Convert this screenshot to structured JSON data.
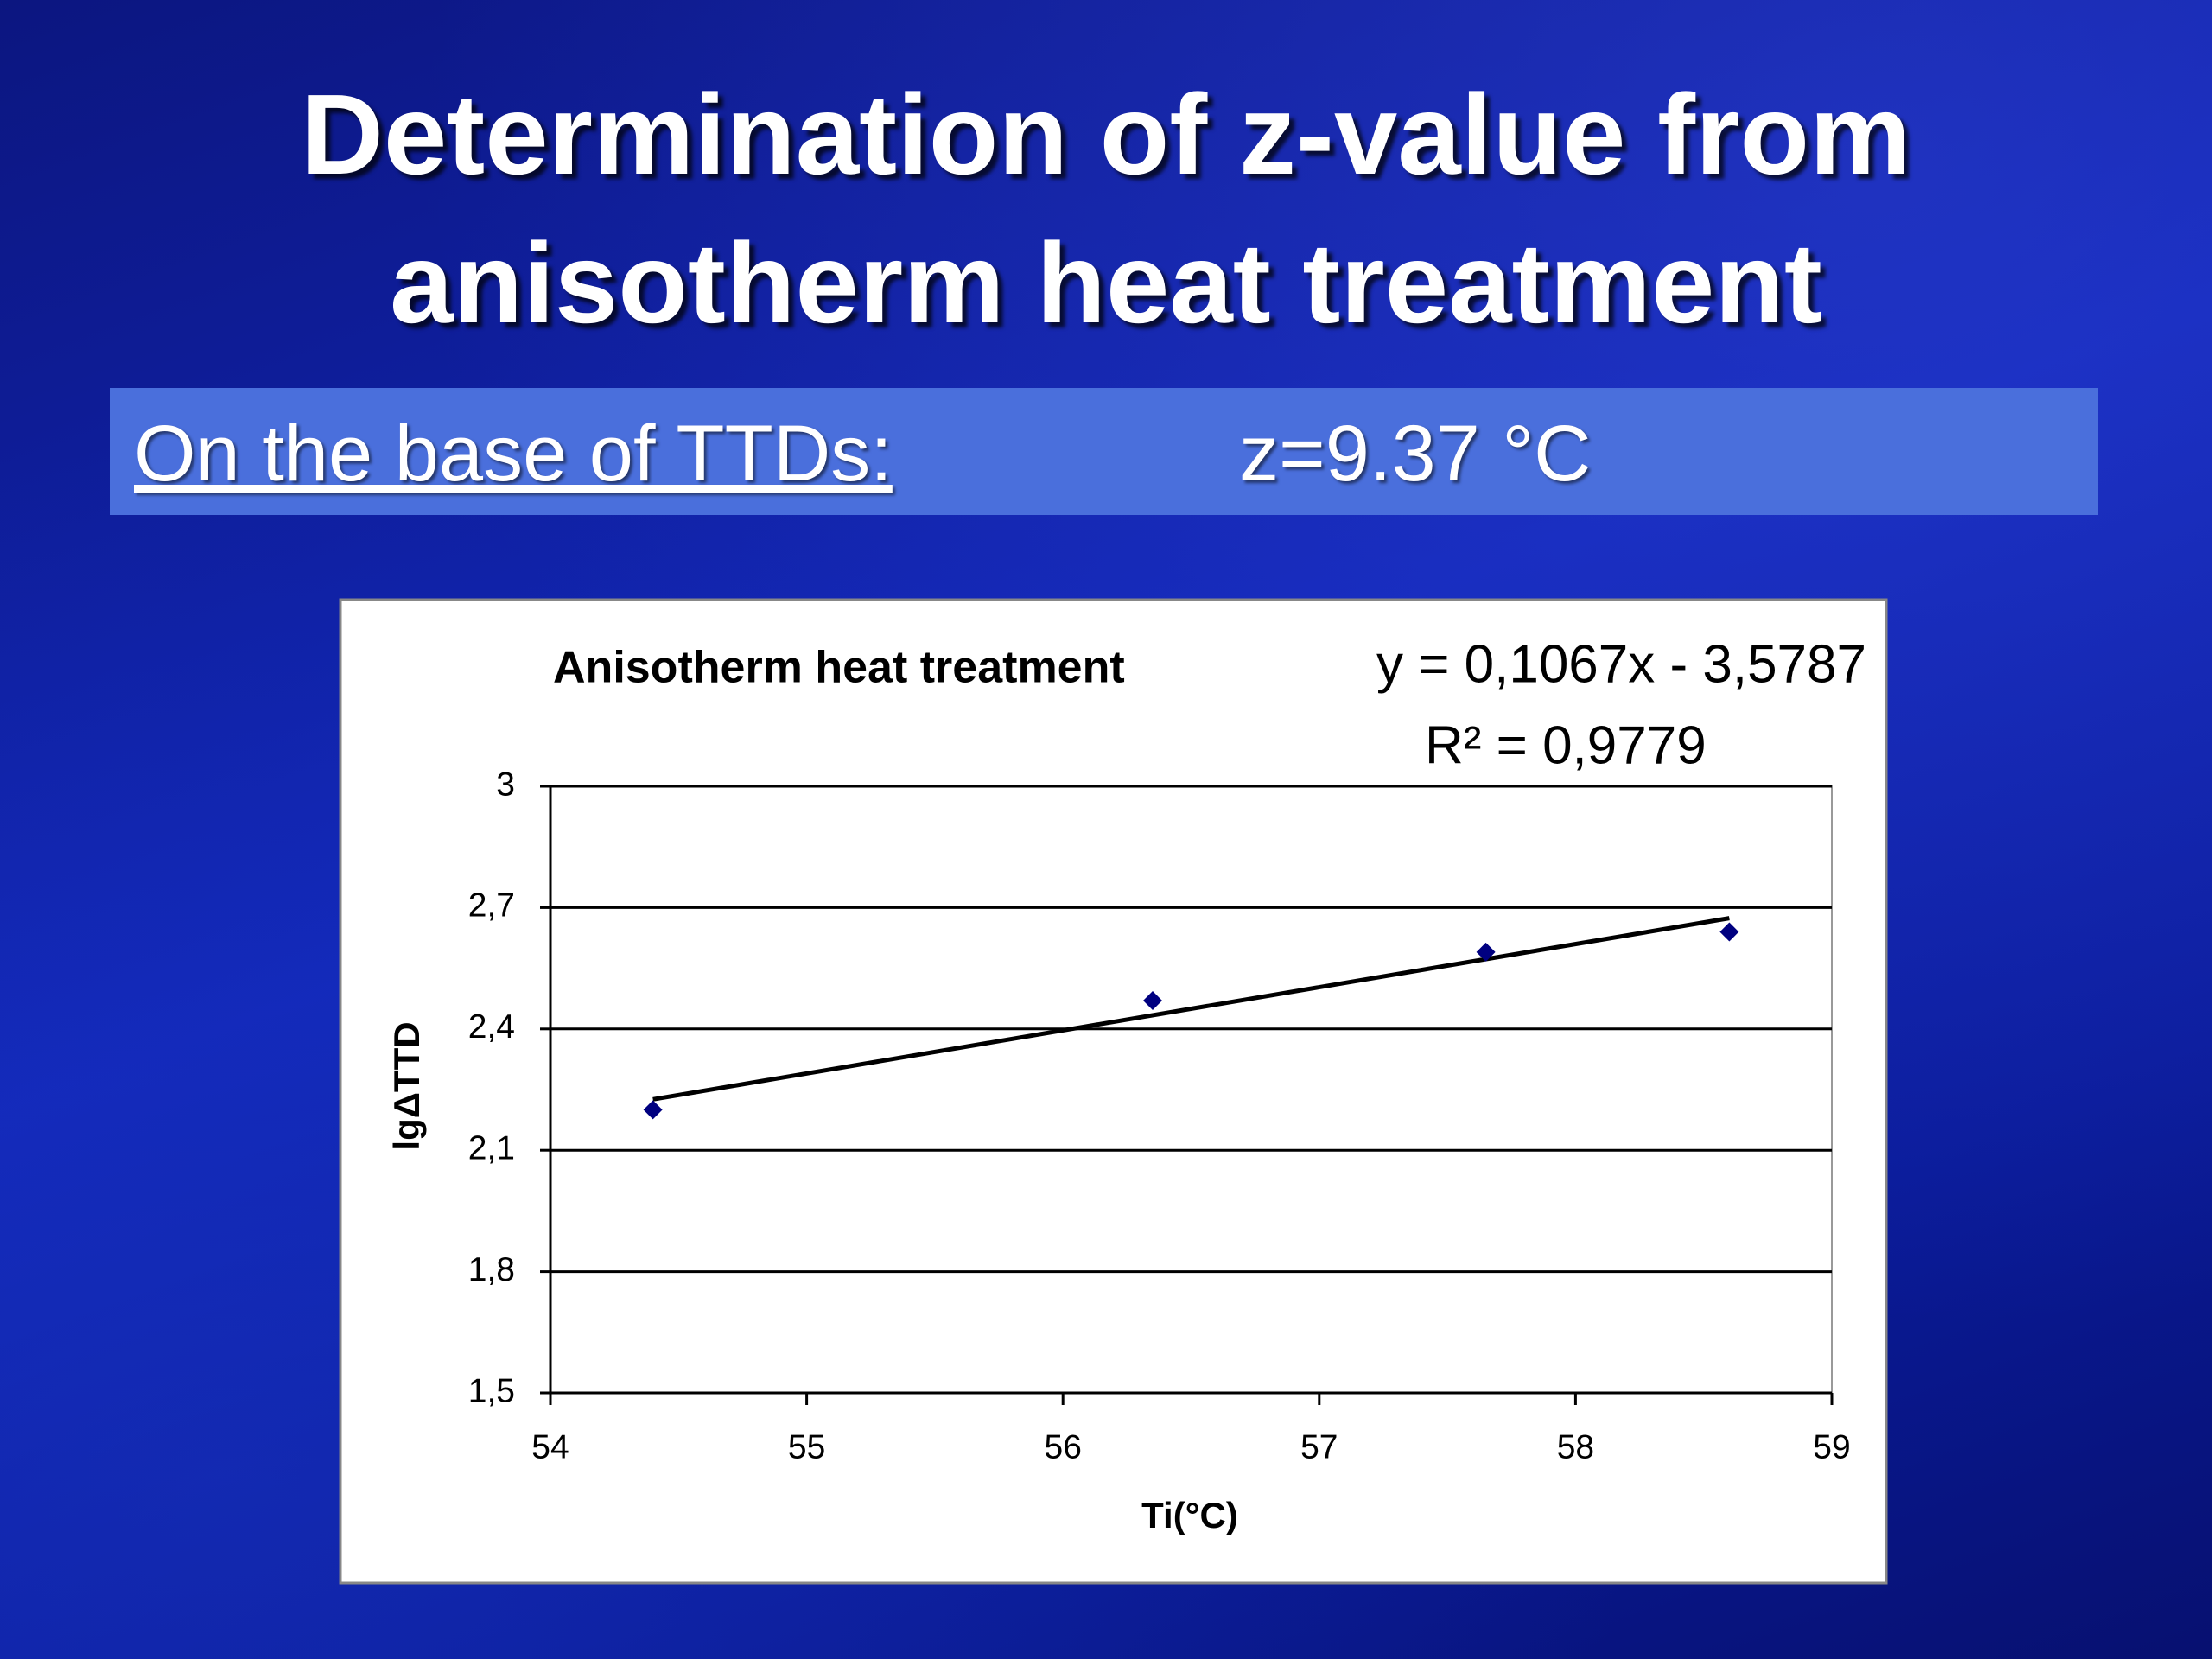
{
  "slide": {
    "title": [
      "Determination of z-value from",
      "anisotherm heat treatment"
    ],
    "banner_label": "On the base of TTDs:",
    "banner_value": "z=9.37 °C"
  },
  "chart_data": {
    "type": "scatter",
    "title": "Anisotherm heat treatment",
    "x_label": "Ti(°C)",
    "y_label": "lgΔTTD",
    "series": [
      {
        "name": "lgΔTTD",
        "color": "#000080",
        "x": [
          54.4,
          56.35,
          57.65,
          58.6
        ],
        "values": [
          2.2,
          2.47,
          2.59,
          2.64
        ]
      }
    ],
    "trendline": {
      "slope": 0.1067,
      "intercept": -3.5787,
      "r2": 0.9779,
      "color": "#000000",
      "label": "y = 0,1067x - 3,5787",
      "r2_label": "R² = 0,9779"
    },
    "xlim": [
      54,
      59
    ],
    "xticks": [
      54,
      55,
      56,
      57,
      58,
      59
    ],
    "ylim": [
      1.5,
      3
    ],
    "yticks": [
      {
        "value": 1.5,
        "label": "1,5"
      },
      {
        "value": 1.8,
        "label": "1,8"
      },
      {
        "value": 2.1,
        "label": "2,1"
      },
      {
        "value": 2.4,
        "label": "2,4"
      },
      {
        "value": 2.7,
        "label": "2,7"
      },
      3
    ],
    "grid": true
  }
}
